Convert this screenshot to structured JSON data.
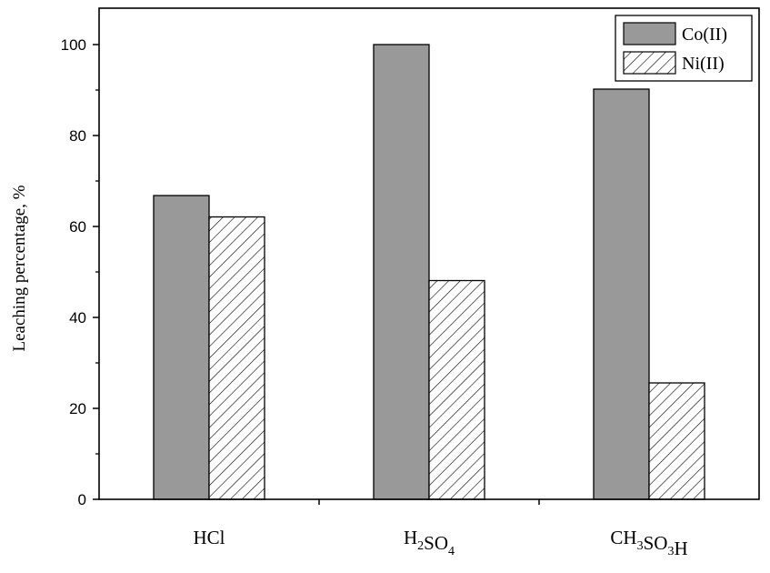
{
  "chart_data": {
    "type": "bar",
    "categories": [
      {
        "label": "HCl",
        "parts": [
          {
            "t": "HCl",
            "sub": false
          }
        ]
      },
      {
        "label": "H2SO4",
        "parts": [
          {
            "t": "H",
            "sub": false
          },
          {
            "t": "2",
            "sub": true
          },
          {
            "t": "SO",
            "sub": false
          },
          {
            "t": "4",
            "sub": true
          }
        ]
      },
      {
        "label": "CH3SO3H",
        "parts": [
          {
            "t": "CH",
            "sub": false
          },
          {
            "t": "3",
            "sub": true
          },
          {
            "t": "SO",
            "sub": false
          },
          {
            "t": "3",
            "sub": true
          },
          {
            "t": "H",
            "sub": false
          }
        ]
      }
    ],
    "series": [
      {
        "name": "Co(II)",
        "values": [
          66.8,
          100,
          90.2
        ],
        "color": "#999999",
        "pattern": "solid"
      },
      {
        "name": "Ni(II)",
        "values": [
          62.1,
          48.1,
          25.6
        ],
        "color": "#ffffff",
        "pattern": "hatched"
      }
    ],
    "title": "",
    "xlabel": "",
    "ylabel": "Leaching percentage, %",
    "ylim": [
      0,
      108
    ],
    "yticks": [
      0,
      20,
      40,
      60,
      80,
      100
    ],
    "grid": false,
    "legend_position": "top-right"
  }
}
